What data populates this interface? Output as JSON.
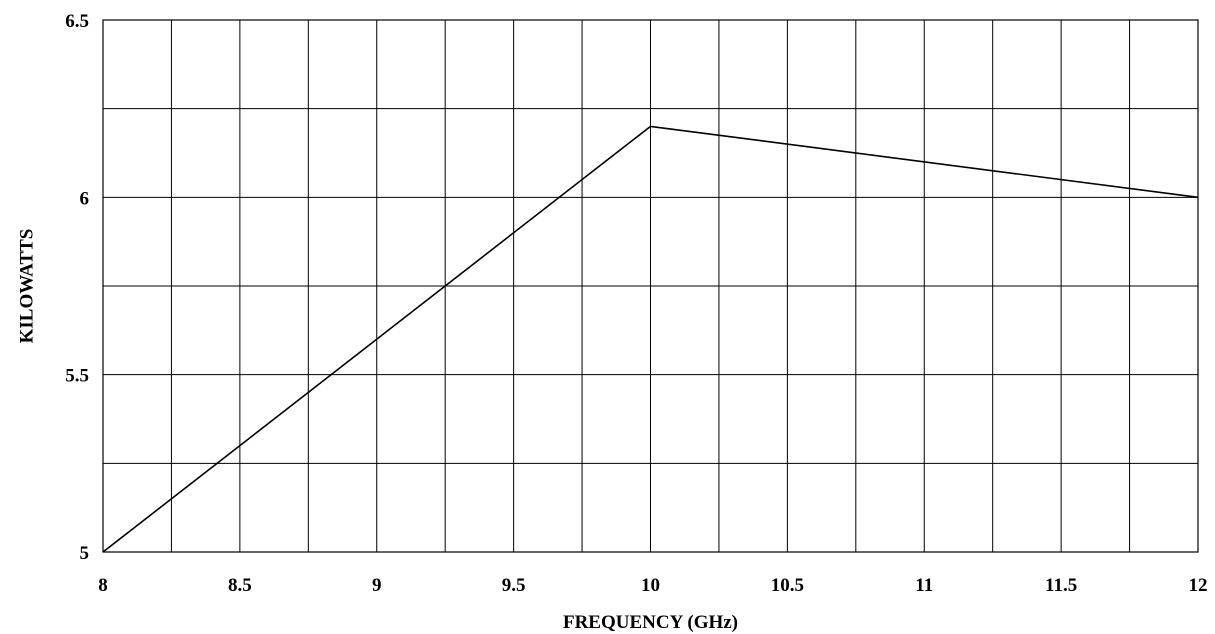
{
  "chart_data": {
    "type": "line",
    "title": "",
    "xlabel": "FREQUENCY (GHz)",
    "ylabel": "KILOWATTS",
    "xlim": [
      8,
      12
    ],
    "ylim": [
      5,
      6.5
    ],
    "x_ticks": [
      8,
      8.5,
      9,
      9.5,
      10,
      10.5,
      11,
      11.5,
      12
    ],
    "x_tick_labels": [
      "8",
      "8.5",
      "9",
      "9.5",
      "10",
      "10.5",
      "11",
      "11.5",
      "12"
    ],
    "y_ticks": [
      5,
      5.5,
      6,
      6.5
    ],
    "y_tick_labels": [
      "5",
      "5.5",
      "6",
      "6.5"
    ],
    "x_grid_step": 0.25,
    "y_grid_step": 0.25,
    "grid": true,
    "legend": "none",
    "series": [
      {
        "x": [
          8,
          10,
          12
        ],
        "y": [
          5.0,
          6.2,
          6.0
        ]
      }
    ]
  },
  "colors": {
    "line": "#000000",
    "grid": "#000000",
    "background": "#ffffff"
  }
}
